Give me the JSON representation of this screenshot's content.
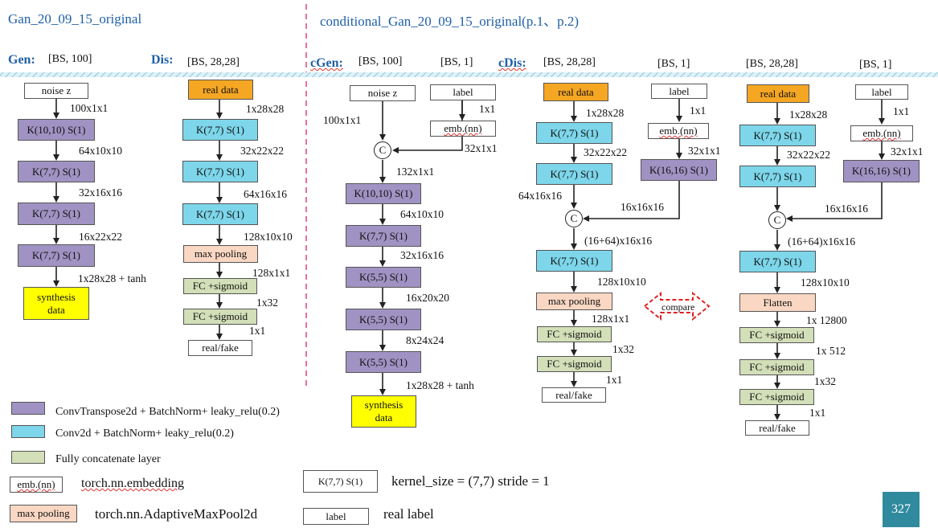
{
  "titles": {
    "left": "Gan_20_09_15_original",
    "right": "conditional_Gan_20_09_15_original(p.1、p.2)"
  },
  "sections": {
    "gen": {
      "name": "Gen:",
      "input": "[BS, 100]"
    },
    "dis": {
      "name": "Dis:",
      "input": "[BS, 28,28]"
    },
    "cgen": {
      "name": "cGen:",
      "input": "[BS, 100]",
      "label_input": "[BS, 1]"
    },
    "cdis": {
      "name": "cDis:",
      "input": "[BS, 28,28]",
      "label_input": "[BS, 1]"
    },
    "cdis2": {
      "input": "[BS, 28,28]",
      "label_input": "[BS, 1]"
    }
  },
  "gen": {
    "input": "noise z",
    "layers": [
      "K(10,10) S(1)",
      "K(7,7) S(1)",
      "K(7,7) S(1)",
      "K(7,7) S(1)"
    ],
    "shapes": [
      "100x1x1",
      "64x10x10",
      "32x16x16",
      "16x22x22",
      "1x28x28 + tanh"
    ],
    "output": "synthesis data"
  },
  "dis": {
    "input": "real data",
    "layers": [
      "K(7,7) S(1)",
      "K(7,7) S(1)",
      "K(7,7) S(1)"
    ],
    "pool": "max pooling",
    "fc": [
      "FC +sigmoid",
      "FC +sigmoid"
    ],
    "shapes": [
      "1x28x28",
      "32x22x22",
      "64x16x16",
      "128x10x10",
      "128x1x1",
      "1x32",
      "1x1"
    ],
    "output": "real/fake"
  },
  "cgen": {
    "input": "noise z",
    "label": "label",
    "emb": "emb.(nn)",
    "concat": "C",
    "layers": [
      "K(10,10) S(1)",
      "K(7,7) S(1)",
      "K(5,5) S(1)",
      "K(5,5) S(1)",
      "K(5,5) S(1)"
    ],
    "shapes": [
      "100x1x1",
      "1x1",
      "32x1x1",
      "132x1x1",
      "64x10x10",
      "32x16x16",
      "16x20x20",
      "8x24x24",
      "1x28x28 + tanh"
    ],
    "output": "synthesis data"
  },
  "cdis": {
    "input": "real data",
    "label": "label",
    "emb": "emb.(nn)",
    "label_conv": "K(16,16) S(1)",
    "concat": "C",
    "layers": [
      "K(7,7) S(1)",
      "K(7,7) S(1)",
      "K(7,7) S(1)"
    ],
    "pool": "max pooling",
    "fc": [
      "FC +sigmoid",
      "FC +sigmoid"
    ],
    "shapes": [
      "1x28x28",
      "32x22x22",
      "64x16x16",
      "1x1",
      "32x1x1",
      "16x16x16",
      "(16+64)x16x16",
      "128x10x10",
      "128x1x1",
      "1x32",
      "1x1"
    ],
    "output": "real/fake"
  },
  "cdis2": {
    "input": "real data",
    "label": "label",
    "emb": "emb.(nn)",
    "label_conv": "K(16,16) S(1)",
    "concat": "C",
    "layers": [
      "K(7,7) S(1)",
      "K(7,7) S(1)",
      "K(7,7) S(1)"
    ],
    "flatten": "Flatten",
    "fc": [
      "FC +sigmoid",
      "FC +sigmoid",
      "FC +sigmoid"
    ],
    "shapes": [
      "1x28x28",
      "32x22x22",
      "1x1",
      "32x1x1",
      "16x16x16",
      "(16+64)x16x16",
      "128x10x10",
      "1x 12800",
      "1x 512",
      "1x32",
      "1x1"
    ],
    "output": "real/fake"
  },
  "compare": "compare",
  "legend": {
    "purple": "ConvTranspose2d  + BatchNorm+  leaky_relu(0.2)",
    "cyan": "Conv2d  + BatchNorm+  leaky_relu(0.2)",
    "green": "Fully  concatenate  layer",
    "emb_box": "emb.(nn)",
    "emb_text": "torch.nn.embedding",
    "pool_box": "max pooling",
    "pool_text": "torch.nn.AdaptiveMaxPool2d",
    "k_box": "K(7,7) S(1)",
    "k_text": "kernel_size = (7,7)  stride = 1",
    "label_box": "label",
    "label_text": "real label"
  },
  "page_number": "327",
  "colors": {
    "title": "#1f5fa8",
    "purple": "#a093c3",
    "cyan": "#7dd6ea",
    "green": "#d3dfb8",
    "orange": "#f5a623",
    "peach": "#f9d7c3",
    "yellow": "#ffff00",
    "divider": "#e0407a",
    "compare": "#e02020",
    "page_badge": "#2f8a9e"
  }
}
